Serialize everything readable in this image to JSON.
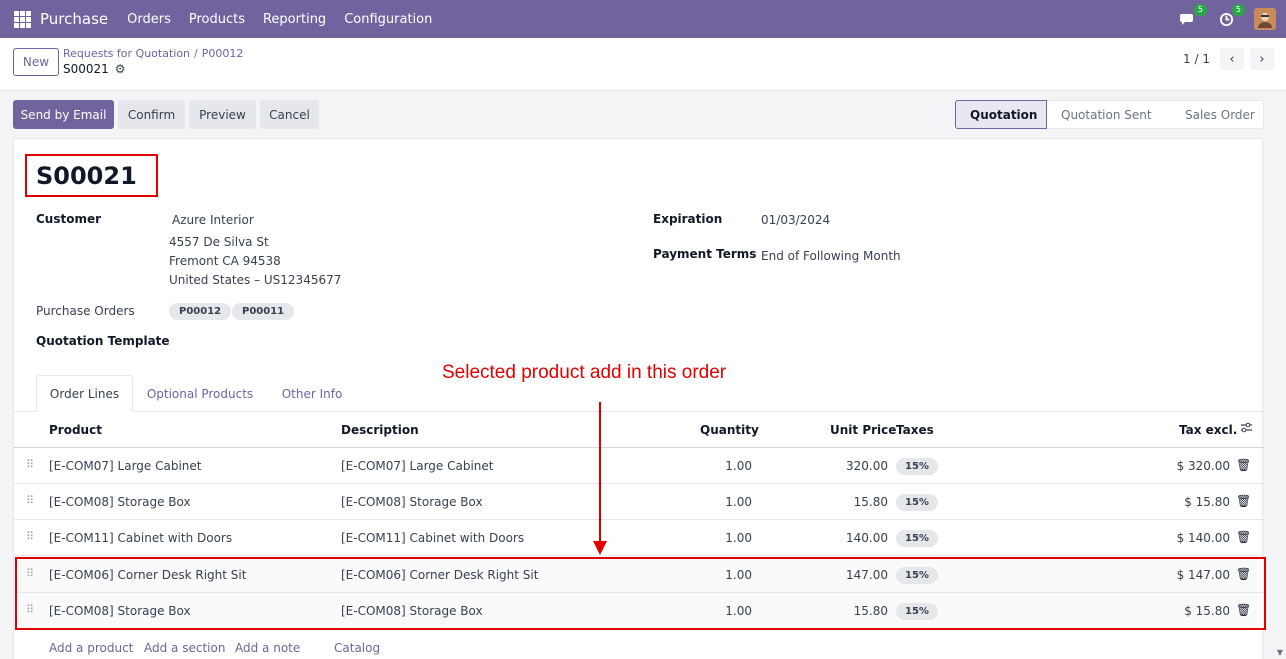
{
  "topnav": {
    "app_name": "Purchase",
    "menu": [
      "Orders",
      "Products",
      "Reporting",
      "Configuration"
    ],
    "messages_count": "5",
    "activities_count": "5"
  },
  "control_panel": {
    "new_label": "New",
    "breadcrumb": [
      "Requests for Quotation",
      "P00012"
    ],
    "current_record": "S00021",
    "pager": "1 / 1"
  },
  "actions": {
    "send_by_email": "Send by Email",
    "confirm": "Confirm",
    "preview": "Preview",
    "cancel": "Cancel"
  },
  "status_stages": [
    "Quotation",
    "Quotation Sent",
    "Sales Order"
  ],
  "status_active": "Quotation",
  "form": {
    "order_name": "S00021",
    "customer_label": "Customer",
    "customer_name": "Azure Interior",
    "customer_address": [
      "4557 De Silva St",
      "Fremont CA 94538",
      "United States – US12345677"
    ],
    "purchase_orders_label": "Purchase Orders",
    "purchase_orders": [
      "P00012",
      "P00011"
    ],
    "quotation_template_label": "Quotation Template",
    "expiration_label": "Expiration",
    "expiration_value": "01/03/2024",
    "payment_terms_label": "Payment Terms",
    "payment_terms_value": "End of Following Month"
  },
  "tabs": [
    "Order Lines",
    "Optional Products",
    "Other Info"
  ],
  "table": {
    "headers": {
      "product": "Product",
      "description": "Description",
      "quantity": "Quantity",
      "unit_price": "Unit Price",
      "taxes": "Taxes",
      "tax_excl": "Tax excl."
    },
    "rows": [
      {
        "product": "[E-COM07] Large Cabinet",
        "description": "[E-COM07] Large Cabinet",
        "quantity": "1.00",
        "unit_price": "320.00",
        "taxes": "15%",
        "subtotal": "$ 320.00"
      },
      {
        "product": "[E-COM08] Storage Box",
        "description": "[E-COM08] Storage Box",
        "quantity": "1.00",
        "unit_price": "15.80",
        "taxes": "15%",
        "subtotal": "$ 15.80"
      },
      {
        "product": "[E-COM11] Cabinet with Doors",
        "description": "[E-COM11] Cabinet with Doors",
        "quantity": "1.00",
        "unit_price": "140.00",
        "taxes": "15%",
        "subtotal": "$ 140.00"
      },
      {
        "product": "[E-COM06] Corner Desk Right Sit",
        "description": "[E-COM06] Corner Desk Right Sit",
        "quantity": "1.00",
        "unit_price": "147.00",
        "taxes": "15%",
        "subtotal": "$ 147.00"
      },
      {
        "product": "[E-COM08] Storage Box",
        "description": "[E-COM08] Storage Box",
        "quantity": "1.00",
        "unit_price": "15.80",
        "taxes": "15%",
        "subtotal": "$ 15.80"
      }
    ],
    "add_links": [
      "Add a product",
      "Add a section",
      "Add a note",
      "Catalog"
    ]
  },
  "annotation": {
    "text": "Selected product add in this order",
    "color": "#e00000"
  },
  "colors": {
    "brand": "#71639e"
  }
}
